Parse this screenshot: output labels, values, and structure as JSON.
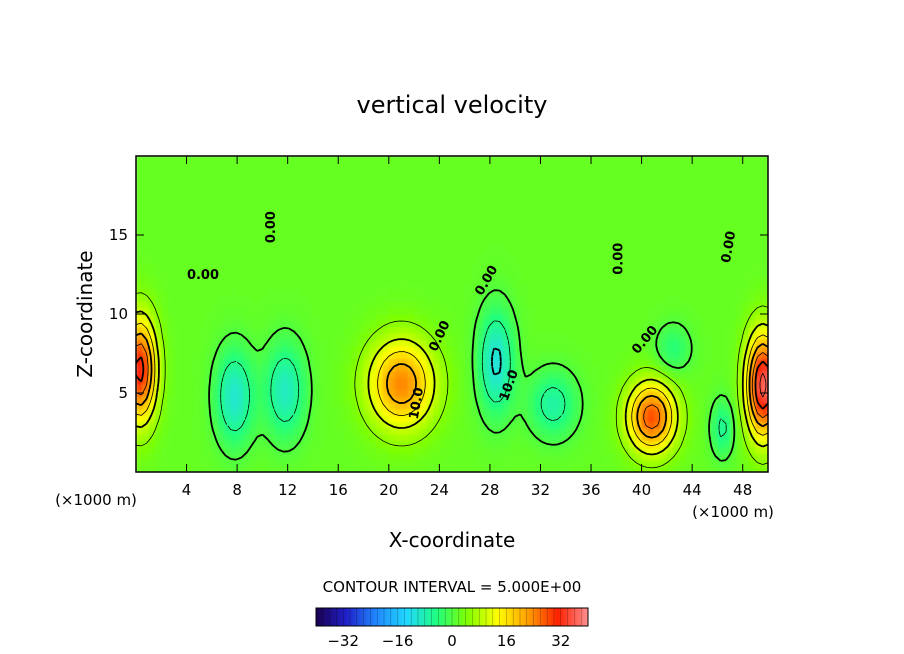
{
  "chart_data": {
    "type": "heatmap",
    "title": "vertical velocity",
    "xlabel": "X-coordinate",
    "ylabel": "Z-coordinate",
    "x_unit_left": "(×1000 m)",
    "x_unit_right": "(×1000 m)",
    "xlim": [
      0,
      50
    ],
    "ylim": [
      0,
      20
    ],
    "x_ticks": [
      4,
      8,
      12,
      16,
      20,
      24,
      28,
      32,
      36,
      40,
      44,
      48
    ],
    "x_tick_labels": [
      "4",
      "8",
      "12",
      "16",
      "20",
      "24",
      "28",
      "32",
      "36",
      "40",
      "44",
      "48"
    ],
    "y_ticks": [
      5,
      10,
      15
    ],
    "y_tick_labels": [
      "5",
      "10",
      "15"
    ],
    "contour_interval_label": "CONTOUR INTERVAL = 5.000E+00",
    "contour_interval": 5,
    "colorbar": {
      "range": [
        -40,
        40
      ],
      "ticks": [
        -32,
        -16,
        0,
        16,
        32
      ],
      "tick_labels": [
        "−32",
        "−16",
        "0",
        "16",
        "32"
      ],
      "colors": [
        "#1a0050",
        "#2020c8",
        "#2088ff",
        "#20d8ff",
        "#20ff80",
        "#80ff00",
        "#ffff00",
        "#ffa000",
        "#ff2000",
        "#ff9090"
      ]
    },
    "background_value": 2,
    "features": [
      {
        "x": 0.3,
        "z": 6.5,
        "value": 30,
        "sx": 1.3,
        "sz": 3.2
      },
      {
        "x": 7.8,
        "z": 4.8,
        "value": -12,
        "sx": 1.5,
        "sz": 3.0
      },
      {
        "x": 11.8,
        "z": 5.2,
        "value": -11,
        "sx": 1.6,
        "sz": 3.0
      },
      {
        "x": 21.0,
        "z": 5.6,
        "value": 22,
        "sx": 2.6,
        "sz": 2.8
      },
      {
        "x": 28.5,
        "z": 7.0,
        "value": -13,
        "sx": 1.4,
        "sz": 3.3
      },
      {
        "x": 33.0,
        "z": 4.3,
        "value": -9,
        "sx": 1.9,
        "sz": 2.1
      },
      {
        "x": 40.8,
        "z": 3.5,
        "value": 26,
        "sx": 1.9,
        "sz": 2.2
      },
      {
        "x": 42.5,
        "z": 7.8,
        "value": -6,
        "sx": 1.4,
        "sz": 1.6
      },
      {
        "x": 46.4,
        "z": 2.8,
        "value": -8,
        "sx": 0.9,
        "sz": 1.8
      },
      {
        "x": 49.6,
        "z": 5.5,
        "value": 35,
        "sx": 1.3,
        "sz": 3.2
      }
    ],
    "contour_labels": [
      {
        "text": "0.00",
        "x": 11.0,
        "z": 15.5,
        "angle": -90
      },
      {
        "text": "0.00",
        "x": 5.3,
        "z": 12.2,
        "angle": 0
      },
      {
        "text": "0.00",
        "x": 24.3,
        "z": 8.5,
        "angle": -65
      },
      {
        "text": "0.00",
        "x": 28.0,
        "z": 12.0,
        "angle": -60
      },
      {
        "text": "0.00",
        "x": 38.5,
        "z": 13.5,
        "angle": -90
      },
      {
        "text": "0.00",
        "x": 40.5,
        "z": 8.2,
        "angle": -50
      },
      {
        "text": "0.00",
        "x": 47.2,
        "z": 14.2,
        "angle": -80
      },
      {
        "text": "10.0",
        "x": 22.5,
        "z": 4.3,
        "angle": -80
      },
      {
        "text": "10.0",
        "x": 29.8,
        "z": 5.4,
        "angle": -70
      }
    ]
  }
}
